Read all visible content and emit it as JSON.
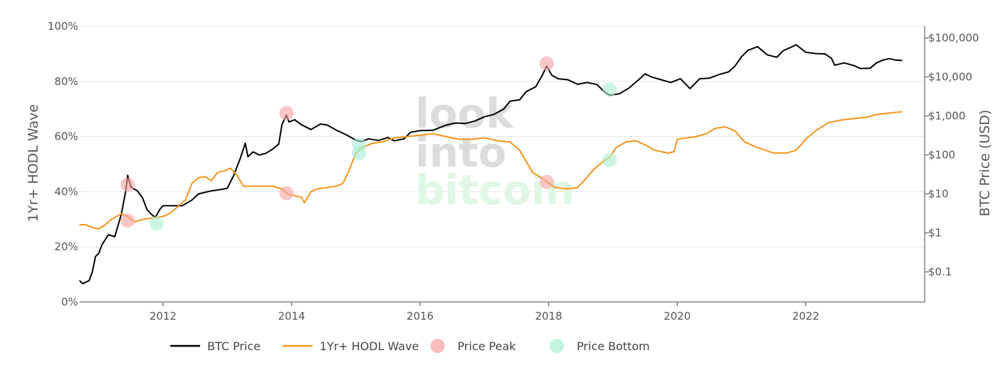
{
  "chart_data": {
    "type": "line",
    "xlabel": "",
    "ylabel_left": "1Yr+ HODL Wave",
    "ylabel_right": "BTC Price (USD)",
    "x_ticks": [
      {
        "value": 2012,
        "label": "2012"
      },
      {
        "value": 2014,
        "label": "2014"
      },
      {
        "value": 2016,
        "label": "2016"
      },
      {
        "value": 2018,
        "label": "2018"
      },
      {
        "value": 2020,
        "label": "2020"
      },
      {
        "value": 2022,
        "label": "2022"
      }
    ],
    "xlim": [
      2010.7,
      2023.85
    ],
    "y_left_ticks": [
      {
        "value": 0,
        "label": "0%"
      },
      {
        "value": 20,
        "label": "20%"
      },
      {
        "value": 40,
        "label": "40%"
      },
      {
        "value": 60,
        "label": "60%"
      },
      {
        "value": 80,
        "label": "80%"
      },
      {
        "value": 100,
        "label": "100%"
      }
    ],
    "ylim_left": [
      0,
      100
    ],
    "y_right_scale": "log",
    "y_right_ticks": [
      {
        "value": 0.1,
        "label": "$0.1"
      },
      {
        "value": 1,
        "label": "$1"
      },
      {
        "value": 10,
        "label": "$10"
      },
      {
        "value": 100,
        "label": "$100"
      },
      {
        "value": 1000,
        "label": "$1,000"
      },
      {
        "value": 10000,
        "label": "$10,000"
      },
      {
        "value": 100000,
        "label": "$100,000"
      }
    ],
    "ylim_right": [
      0.017,
      200000
    ],
    "grid": true,
    "legend_position": "bottom",
    "watermark": {
      "line1": "look",
      "line2": "into",
      "line3": "bitcoin"
    },
    "series": [
      {
        "name": "BTC Price",
        "axis": "right",
        "color": "#000000",
        "points": [
          [
            2010.7,
            0.06
          ],
          [
            2010.75,
            0.05
          ],
          [
            2010.85,
            0.06
          ],
          [
            2010.9,
            0.1
          ],
          [
            2010.95,
            0.25
          ],
          [
            2011.0,
            0.3
          ],
          [
            2011.05,
            0.5
          ],
          [
            2011.15,
            0.9
          ],
          [
            2011.25,
            0.8
          ],
          [
            2011.35,
            3
          ],
          [
            2011.42,
            12
          ],
          [
            2011.45,
            30
          ],
          [
            2011.5,
            15
          ],
          [
            2011.6,
            12
          ],
          [
            2011.68,
            8
          ],
          [
            2011.75,
            4
          ],
          [
            2011.82,
            3
          ],
          [
            2011.88,
            2.5
          ],
          [
            2011.95,
            4
          ],
          [
            2012.0,
            5
          ],
          [
            2012.1,
            5
          ],
          [
            2012.2,
            5
          ],
          [
            2012.3,
            5
          ],
          [
            2012.45,
            7
          ],
          [
            2012.55,
            10
          ],
          [
            2012.65,
            11
          ],
          [
            2012.75,
            12
          ],
          [
            2012.9,
            13
          ],
          [
            2013.0,
            14
          ],
          [
            2013.1,
            30
          ],
          [
            2013.2,
            80
          ],
          [
            2013.28,
            200
          ],
          [
            2013.32,
            90
          ],
          [
            2013.4,
            120
          ],
          [
            2013.5,
            100
          ],
          [
            2013.6,
            110
          ],
          [
            2013.7,
            140
          ],
          [
            2013.8,
            190
          ],
          [
            2013.85,
            600
          ],
          [
            2013.92,
            1050
          ],
          [
            2013.96,
            700
          ],
          [
            2014.05,
            800
          ],
          [
            2014.15,
            600
          ],
          [
            2014.3,
            450
          ],
          [
            2014.45,
            620
          ],
          [
            2014.55,
            590
          ],
          [
            2014.7,
            430
          ],
          [
            2014.85,
            330
          ],
          [
            2015.0,
            240
          ],
          [
            2015.08,
            220
          ],
          [
            2015.2,
            260
          ],
          [
            2015.35,
            235
          ],
          [
            2015.5,
            280
          ],
          [
            2015.6,
            230
          ],
          [
            2015.75,
            260
          ],
          [
            2015.85,
            380
          ],
          [
            2016.0,
            420
          ],
          [
            2016.2,
            430
          ],
          [
            2016.4,
            580
          ],
          [
            2016.55,
            660
          ],
          [
            2016.7,
            640
          ],
          [
            2016.85,
            740
          ],
          [
            2017.0,
            950
          ],
          [
            2017.15,
            1100
          ],
          [
            2017.3,
            1500
          ],
          [
            2017.4,
            2400
          ],
          [
            2017.55,
            2600
          ],
          [
            2017.65,
            4200
          ],
          [
            2017.8,
            5600
          ],
          [
            2017.9,
            11000
          ],
          [
            2017.97,
            19000
          ],
          [
            2018.05,
            11000
          ],
          [
            2018.15,
            9000
          ],
          [
            2018.3,
            8500
          ],
          [
            2018.45,
            6500
          ],
          [
            2018.6,
            7200
          ],
          [
            2018.75,
            6400
          ],
          [
            2018.88,
            4000
          ],
          [
            2018.95,
            3400
          ],
          [
            2019.1,
            3700
          ],
          [
            2019.25,
            5200
          ],
          [
            2019.4,
            8500
          ],
          [
            2019.5,
            12000
          ],
          [
            2019.6,
            10000
          ],
          [
            2019.75,
            8500
          ],
          [
            2019.9,
            7200
          ],
          [
            2020.05,
            9000
          ],
          [
            2020.2,
            5000
          ],
          [
            2020.35,
            9000
          ],
          [
            2020.5,
            9300
          ],
          [
            2020.65,
            11500
          ],
          [
            2020.8,
            13500
          ],
          [
            2020.9,
            19000
          ],
          [
            2021.0,
            33000
          ],
          [
            2021.1,
            48000
          ],
          [
            2021.25,
            60000
          ],
          [
            2021.4,
            37000
          ],
          [
            2021.55,
            32000
          ],
          [
            2021.65,
            47000
          ],
          [
            2021.8,
            61000
          ],
          [
            2021.85,
            67000
          ],
          [
            2022.0,
            43000
          ],
          [
            2022.15,
            40000
          ],
          [
            2022.3,
            39000
          ],
          [
            2022.4,
            30000
          ],
          [
            2022.45,
            20000
          ],
          [
            2022.6,
            23000
          ],
          [
            2022.75,
            19500
          ],
          [
            2022.85,
            16500
          ],
          [
            2023.0,
            16700
          ],
          [
            2023.1,
            23000
          ],
          [
            2023.2,
            27000
          ],
          [
            2023.3,
            29500
          ],
          [
            2023.4,
            27000
          ],
          [
            2023.5,
            26500
          ]
        ]
      },
      {
        "name": "1Yr+ HODL Wave",
        "axis": "left",
        "color": "#f7931a",
        "points": [
          [
            2010.7,
            28
          ],
          [
            2010.8,
            28
          ],
          [
            2010.9,
            27
          ],
          [
            2011.0,
            26.5
          ],
          [
            2011.1,
            28
          ],
          [
            2011.2,
            30
          ],
          [
            2011.35,
            32
          ],
          [
            2011.45,
            31
          ],
          [
            2011.55,
            29
          ],
          [
            2011.7,
            30
          ],
          [
            2011.85,
            30.5
          ],
          [
            2012.0,
            31
          ],
          [
            2012.1,
            32
          ],
          [
            2012.2,
            34
          ],
          [
            2012.35,
            37
          ],
          [
            2012.45,
            43
          ],
          [
            2012.55,
            45
          ],
          [
            2012.65,
            45.5
          ],
          [
            2012.75,
            44
          ],
          [
            2012.85,
            47
          ],
          [
            2012.95,
            47.5
          ],
          [
            2013.05,
            48.5
          ],
          [
            2013.15,
            46
          ],
          [
            2013.25,
            42
          ],
          [
            2013.4,
            42
          ],
          [
            2013.5,
            42
          ],
          [
            2013.7,
            42
          ],
          [
            2013.85,
            41
          ],
          [
            2013.95,
            39
          ],
          [
            2014.05,
            38.5
          ],
          [
            2014.15,
            38
          ],
          [
            2014.2,
            36
          ],
          [
            2014.3,
            40
          ],
          [
            2014.4,
            41
          ],
          [
            2014.55,
            41.5
          ],
          [
            2014.7,
            42
          ],
          [
            2014.8,
            43
          ],
          [
            2014.9,
            48
          ],
          [
            2015.0,
            54
          ],
          [
            2015.1,
            56
          ],
          [
            2015.25,
            57.5
          ],
          [
            2015.4,
            58
          ],
          [
            2015.6,
            59.5
          ],
          [
            2015.8,
            60
          ],
          [
            2016.0,
            60.5
          ],
          [
            2016.2,
            61
          ],
          [
            2016.4,
            60
          ],
          [
            2016.6,
            59
          ],
          [
            2016.8,
            59
          ],
          [
            2017.0,
            59.5
          ],
          [
            2017.2,
            58.5
          ],
          [
            2017.4,
            58
          ],
          [
            2017.55,
            55
          ],
          [
            2017.75,
            47
          ],
          [
            2017.95,
            44
          ],
          [
            2018.1,
            41.5
          ],
          [
            2018.3,
            41
          ],
          [
            2018.45,
            41.5
          ],
          [
            2018.55,
            44
          ],
          [
            2018.7,
            48
          ],
          [
            2018.85,
            51
          ],
          [
            2018.95,
            52.5
          ],
          [
            2019.05,
            56
          ],
          [
            2019.2,
            58
          ],
          [
            2019.35,
            58.5
          ],
          [
            2019.5,
            57
          ],
          [
            2019.65,
            55
          ],
          [
            2019.85,
            54
          ],
          [
            2019.95,
            54.5
          ],
          [
            2020.0,
            59
          ],
          [
            2020.15,
            59.5
          ],
          [
            2020.3,
            60
          ],
          [
            2020.45,
            61
          ],
          [
            2020.6,
            63
          ],
          [
            2020.75,
            63.5
          ],
          [
            2020.9,
            62
          ],
          [
            2021.05,
            58
          ],
          [
            2021.25,
            56
          ],
          [
            2021.5,
            54
          ],
          [
            2021.7,
            54
          ],
          [
            2021.85,
            55
          ],
          [
            2022.0,
            59
          ],
          [
            2022.15,
            62
          ],
          [
            2022.35,
            65
          ],
          [
            2022.55,
            66
          ],
          [
            2022.75,
            66.5
          ],
          [
            2022.95,
            67
          ],
          [
            2023.1,
            68
          ],
          [
            2023.3,
            68.5
          ],
          [
            2023.5,
            69
          ]
        ]
      },
      {
        "name": "Price Peak",
        "axis": "left",
        "color": "#f7a1a1",
        "points": [
          [
            2011.45,
            42.5
          ],
          [
            2011.45,
            29.5
          ],
          [
            2013.92,
            68.5
          ],
          [
            2013.92,
            39.5
          ],
          [
            2017.97,
            86.5
          ],
          [
            2017.97,
            43.5
          ]
        ]
      },
      {
        "name": "Price Bottom",
        "axis": "left",
        "color": "#a9efd0",
        "points": [
          [
            2011.9,
            28.5
          ],
          [
            2015.05,
            57
          ],
          [
            2015.05,
            54
          ],
          [
            2018.95,
            77
          ],
          [
            2018.95,
            51.5
          ]
        ]
      }
    ]
  }
}
